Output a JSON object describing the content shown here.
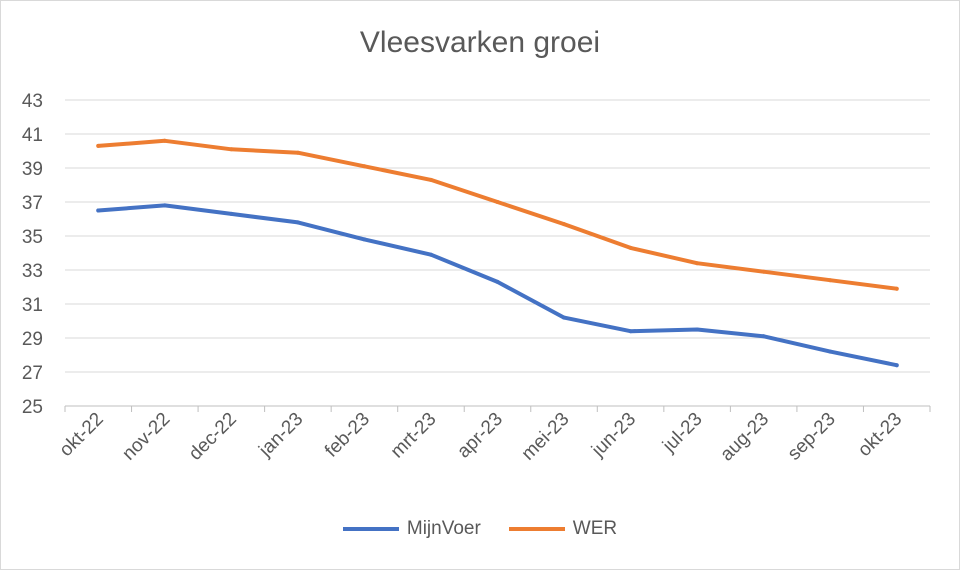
{
  "chart_data": {
    "type": "line",
    "title": "Vleesvarken groei",
    "xlabel": "",
    "ylabel": "",
    "categories": [
      "okt-22",
      "nov-22",
      "dec-22",
      "jan-23",
      "feb-23",
      "mrt-23",
      "apr-23",
      "mei-23",
      "jun-23",
      "jul-23",
      "aug-23",
      "sep-23",
      "okt-23"
    ],
    "ylim": [
      25,
      43
    ],
    "yticks": [
      25,
      27,
      29,
      31,
      33,
      35,
      37,
      39,
      41,
      43
    ],
    "grid": true,
    "legend_position": "bottom",
    "series": [
      {
        "name": "MijnVoer",
        "color": "#4472C4",
        "values": [
          36.5,
          36.8,
          36.3,
          35.8,
          34.8,
          33.9,
          32.3,
          30.2,
          29.4,
          29.5,
          29.1,
          28.2,
          27.4
        ]
      },
      {
        "name": "WER",
        "color": "#ED7D31",
        "values": [
          40.3,
          40.6,
          40.1,
          39.9,
          39.1,
          38.3,
          37.0,
          35.7,
          34.3,
          33.4,
          32.9,
          32.4,
          31.9
        ]
      }
    ]
  }
}
